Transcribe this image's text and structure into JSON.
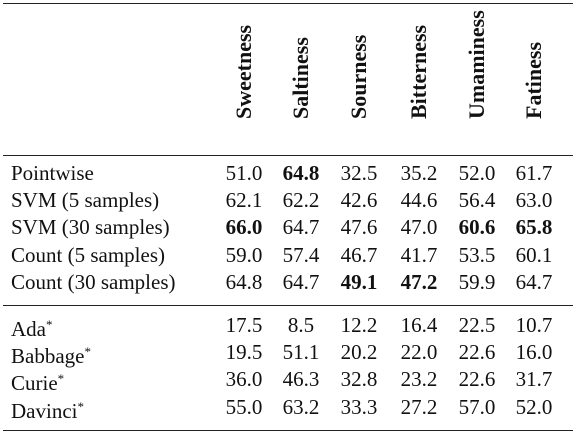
{
  "columns": [
    "Sweetness",
    "Saltiness",
    "Sourness",
    "Bitterness",
    "Umaminess",
    "Fatiness"
  ],
  "groups": [
    {
      "rows": [
        {
          "label": "Pointwise",
          "values": [
            "51.0",
            "64.8",
            "32.5",
            "35.2",
            "52.0",
            "61.7"
          ],
          "bold": [
            false,
            true,
            false,
            false,
            false,
            false
          ]
        },
        {
          "label": "SVM (5 samples)",
          "values": [
            "62.1",
            "62.2",
            "42.6",
            "44.6",
            "56.4",
            "63.0"
          ],
          "bold": [
            false,
            false,
            false,
            false,
            false,
            false
          ]
        },
        {
          "label": "SVM (30 samples)",
          "values": [
            "66.0",
            "64.7",
            "47.6",
            "47.0",
            "60.6",
            "65.8"
          ],
          "bold": [
            true,
            false,
            false,
            false,
            true,
            true
          ]
        },
        {
          "label": "Count (5 samples)",
          "values": [
            "59.0",
            "57.4",
            "46.7",
            "41.7",
            "53.5",
            "60.1"
          ],
          "bold": [
            false,
            false,
            false,
            false,
            false,
            false
          ]
        },
        {
          "label": "Count (30 samples)",
          "values": [
            "64.8",
            "64.7",
            "49.1",
            "47.2",
            "59.9",
            "64.7"
          ],
          "bold": [
            false,
            false,
            true,
            true,
            false,
            false
          ]
        }
      ]
    },
    {
      "rows": [
        {
          "label": "Ada",
          "mark": "*",
          "values": [
            "17.5",
            "8.5",
            "12.2",
            "16.4",
            "22.5",
            "10.7"
          ],
          "bold": [
            false,
            false,
            false,
            false,
            false,
            false
          ]
        },
        {
          "label": "Babbage",
          "mark": "*",
          "values": [
            "19.5",
            "51.1",
            "20.2",
            "22.0",
            "22.6",
            "16.0"
          ],
          "bold": [
            false,
            false,
            false,
            false,
            false,
            false
          ]
        },
        {
          "label": "Curie",
          "mark": "*",
          "values": [
            "36.0",
            "46.3",
            "32.8",
            "23.2",
            "22.6",
            "31.7"
          ],
          "bold": [
            false,
            false,
            false,
            false,
            false,
            false
          ]
        },
        {
          "label": "Davinci",
          "mark": "*",
          "values": [
            "55.0",
            "63.2",
            "33.3",
            "27.2",
            "57.0",
            "52.0"
          ],
          "bold": [
            false,
            false,
            false,
            false,
            false,
            false
          ]
        }
      ]
    }
  ]
}
